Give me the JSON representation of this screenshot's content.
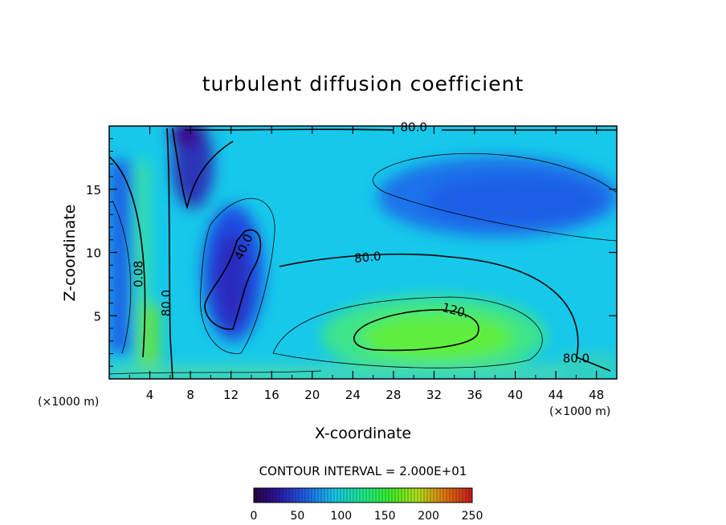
{
  "chart_data": {
    "type": "heatmap",
    "title": "turbulent diffusion coefficient",
    "xlabel": "X-coordinate",
    "ylabel": "Z-coordinate",
    "x_unit": "(×1000 m)",
    "x_unit_right": "(×1000 m)",
    "xlim": [
      0,
      50
    ],
    "ylim": [
      0,
      20
    ],
    "xticks": [
      4,
      8,
      12,
      16,
      20,
      24,
      28,
      32,
      36,
      40,
      44,
      48
    ],
    "yticks": [
      5,
      10,
      15
    ],
    "contour_interval_text": "CONTOUR INTERVAL = 2.000E+01",
    "colorbar": {
      "min": 0,
      "max": 250,
      "ticks": [
        0,
        50,
        100,
        150,
        200,
        250
      ]
    },
    "contour_labels": [
      {
        "text": "80.0",
        "x": 30,
        "z": 19.6
      },
      {
        "text": "80.0",
        "x": 25.5,
        "z": 9.3
      },
      {
        "text": "80.0",
        "x": 46,
        "z": 1.3
      },
      {
        "text": "80.0",
        "x": 6,
        "z": 6.0
      },
      {
        "text": "0.08",
        "x": 3.3,
        "z": 8.3
      },
      {
        "text": "40.0",
        "x": 13.6,
        "z": 10.3
      },
      {
        "text": "120.",
        "x": 34,
        "z": 5.1
      }
    ]
  }
}
